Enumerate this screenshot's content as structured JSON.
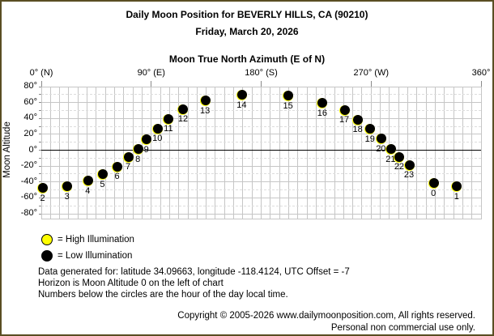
{
  "header": {
    "title": "Daily Moon Position for BEVERLY HILLS, CA (90210)",
    "date": "Friday, March 20, 2026"
  },
  "chart_data": {
    "type": "scatter",
    "xlabel": "Moon True North Azimuth (E of N)",
    "ylabel": "Moon Altitude",
    "xlim": [
      0,
      360
    ],
    "ylim": [
      -80,
      80
    ],
    "grid": {
      "x_step_deg": 7.5,
      "y_major_step_deg": 20,
      "y_minor_step_deg": 10,
      "horizon_altitude": 0
    },
    "x_ticks": [
      {
        "azimuth": 0,
        "label": "0° (N)"
      },
      {
        "azimuth": 90,
        "label": "90° (E)"
      },
      {
        "azimuth": 180,
        "label": "180° (S)"
      },
      {
        "azimuth": 270,
        "label": "270° (W)"
      },
      {
        "azimuth": 360,
        "label": "360°"
      }
    ],
    "y_ticks": [
      {
        "altitude": 80,
        "label": "80°"
      },
      {
        "altitude": 60,
        "label": "60°"
      },
      {
        "altitude": 40,
        "label": "40°"
      },
      {
        "altitude": 20,
        "label": "20°"
      },
      {
        "altitude": 0,
        "label": "0°"
      },
      {
        "altitude": -20,
        "label": "-20°"
      },
      {
        "altitude": -40,
        "label": "-40°"
      },
      {
        "altitude": -60,
        "label": "-60°"
      },
      {
        "altitude": -80,
        "label": "-80°"
      }
    ],
    "series": [
      {
        "name": "hourly-moon-position",
        "illumination": "low",
        "marker_color": "#000000",
        "edge_color": "#ffff00",
        "points": [
          {
            "hour": 0,
            "azimuth": 321,
            "altitude": -42
          },
          {
            "hour": 1,
            "azimuth": 340,
            "altitude": -46
          },
          {
            "hour": 2,
            "azimuth": 1,
            "altitude": -48
          },
          {
            "hour": 3,
            "azimuth": 21,
            "altitude": -46
          },
          {
            "hour": 4,
            "azimuth": 38,
            "altitude": -39
          },
          {
            "hour": 5,
            "azimuth": 50,
            "altitude": -31
          },
          {
            "hour": 6,
            "azimuth": 62,
            "altitude": -21
          },
          {
            "hour": 7,
            "azimuth": 71,
            "altitude": -9
          },
          {
            "hour": 8,
            "azimuth": 79,
            "altitude": 1
          },
          {
            "hour": 9,
            "azimuth": 86,
            "altitude": 13
          },
          {
            "hour": 10,
            "azimuth": 95,
            "altitude": 27
          },
          {
            "hour": 11,
            "azimuth": 104,
            "altitude": 39
          },
          {
            "hour": 12,
            "azimuth": 116,
            "altitude": 51
          },
          {
            "hour": 13,
            "azimuth": 134,
            "altitude": 62
          },
          {
            "hour": 14,
            "azimuth": 164,
            "altitude": 69
          },
          {
            "hour": 15,
            "azimuth": 202,
            "altitude": 68
          },
          {
            "hour": 16,
            "azimuth": 230,
            "altitude": 59
          },
          {
            "hour": 17,
            "azimuth": 248,
            "altitude": 50
          },
          {
            "hour": 18,
            "azimuth": 259,
            "altitude": 38
          },
          {
            "hour": 19,
            "azimuth": 269,
            "altitude": 26
          },
          {
            "hour": 20,
            "azimuth": 278,
            "altitude": 14
          },
          {
            "hour": 21,
            "azimuth": 286,
            "altitude": 1
          },
          {
            "hour": 22,
            "azimuth": 293,
            "altitude": -9
          },
          {
            "hour": 23,
            "azimuth": 301,
            "altitude": -19
          }
        ]
      }
    ]
  },
  "legend": {
    "items": [
      {
        "name": "high-illumination",
        "color": "#ffff00",
        "label": "= High Illumination"
      },
      {
        "name": "low-illumination",
        "color": "#000000",
        "label": "= Low Illumination"
      }
    ]
  },
  "notes": {
    "line1": "Data generated for: latitude 34.09663, longitude -118.4124, UTC Offset = -7",
    "line2": "Horizon is Moon Altitude 0 on the left of chart",
    "line3": "Numbers below the circles are the hour of the day local time."
  },
  "footer": {
    "line1": "Copyright © 2005-2026 www.dailymoonposition.com, All rights reserved.",
    "line2": "Personal non commercial use only."
  },
  "colors": {
    "frame_border": "#5a4e23",
    "background": "#ffffff",
    "text": "#000000",
    "grid_major": "#c6c6c6",
    "grid_minor": "#dddddd",
    "horizon": "#000000",
    "high_illumination": "#ffff00",
    "low_illumination": "#000000"
  }
}
